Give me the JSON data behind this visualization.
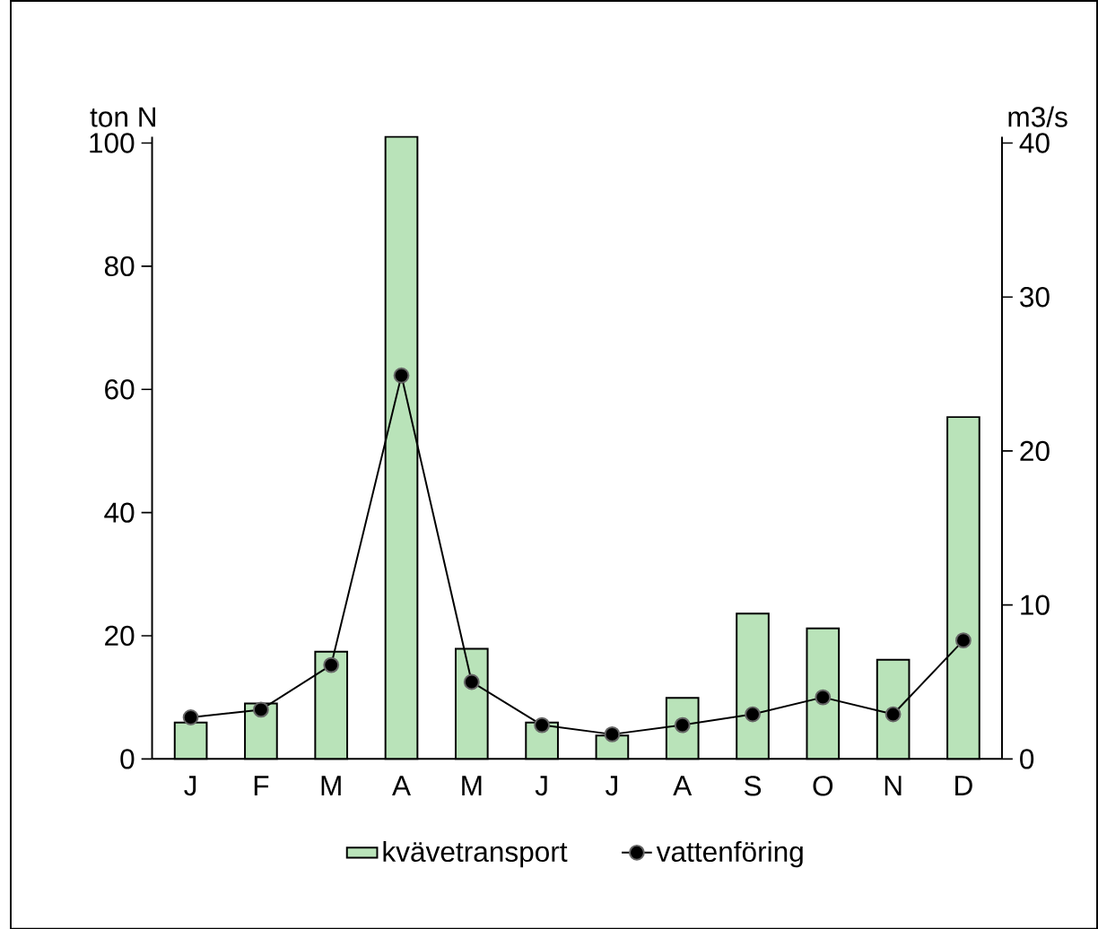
{
  "chart_data": {
    "type": "bar",
    "ylabel": "ton N",
    "y2label": "m3/s",
    "categories": [
      "J",
      "F",
      "M",
      "A",
      "M",
      "J",
      "J",
      "A",
      "S",
      "O",
      "N",
      "D"
    ],
    "series": [
      {
        "name": "kvävetransport",
        "color": "#b9e3b9",
        "values": [
          5.9,
          9.0,
          17.4,
          101,
          17.9,
          5.9,
          3.8,
          9.9,
          23.6,
          21.2,
          16.1,
          55.5
        ]
      },
      {
        "name": "vattenföring",
        "type": "line",
        "axis": "y2",
        "color": "#000000",
        "marker": "circle",
        "values": [
          2.7,
          3.2,
          6.1,
          24.9,
          5.0,
          2.2,
          1.6,
          2.2,
          2.9,
          4.0,
          2.9,
          7.7
        ]
      }
    ],
    "ylim": [
      0,
      101
    ],
    "yticks": [
      0,
      20,
      40,
      60,
      80,
      100
    ],
    "y2lim": [
      0,
      40.4
    ],
    "y2ticks": [
      0,
      10,
      20,
      30,
      40
    ],
    "legend": "bottom"
  }
}
